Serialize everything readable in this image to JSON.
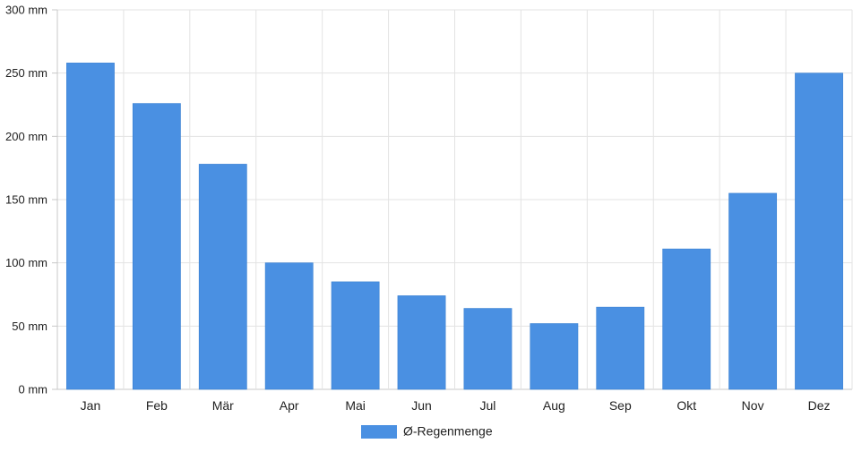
{
  "chart_data": {
    "type": "bar",
    "categories": [
      "Jan",
      "Feb",
      "Mär",
      "Apr",
      "Mai",
      "Jun",
      "Jul",
      "Aug",
      "Sep",
      "Okt",
      "Nov",
      "Dez"
    ],
    "series": [
      {
        "name": "Ø-Regenmenge",
        "values": [
          258,
          226,
          178,
          100,
          85,
          74,
          64,
          52,
          65,
          111,
          155,
          250
        ]
      }
    ],
    "ylim": [
      0,
      300
    ],
    "yticks": [
      "0 mm",
      "50 mm",
      "100 mm",
      "150 mm",
      "200 mm",
      "250 mm",
      "300 mm"
    ],
    "grid": true,
    "legend": "bottom",
    "colors": {
      "bar": "#4a90e2",
      "grid": "#e3e3e3",
      "axis": "#c8c8c8"
    }
  }
}
